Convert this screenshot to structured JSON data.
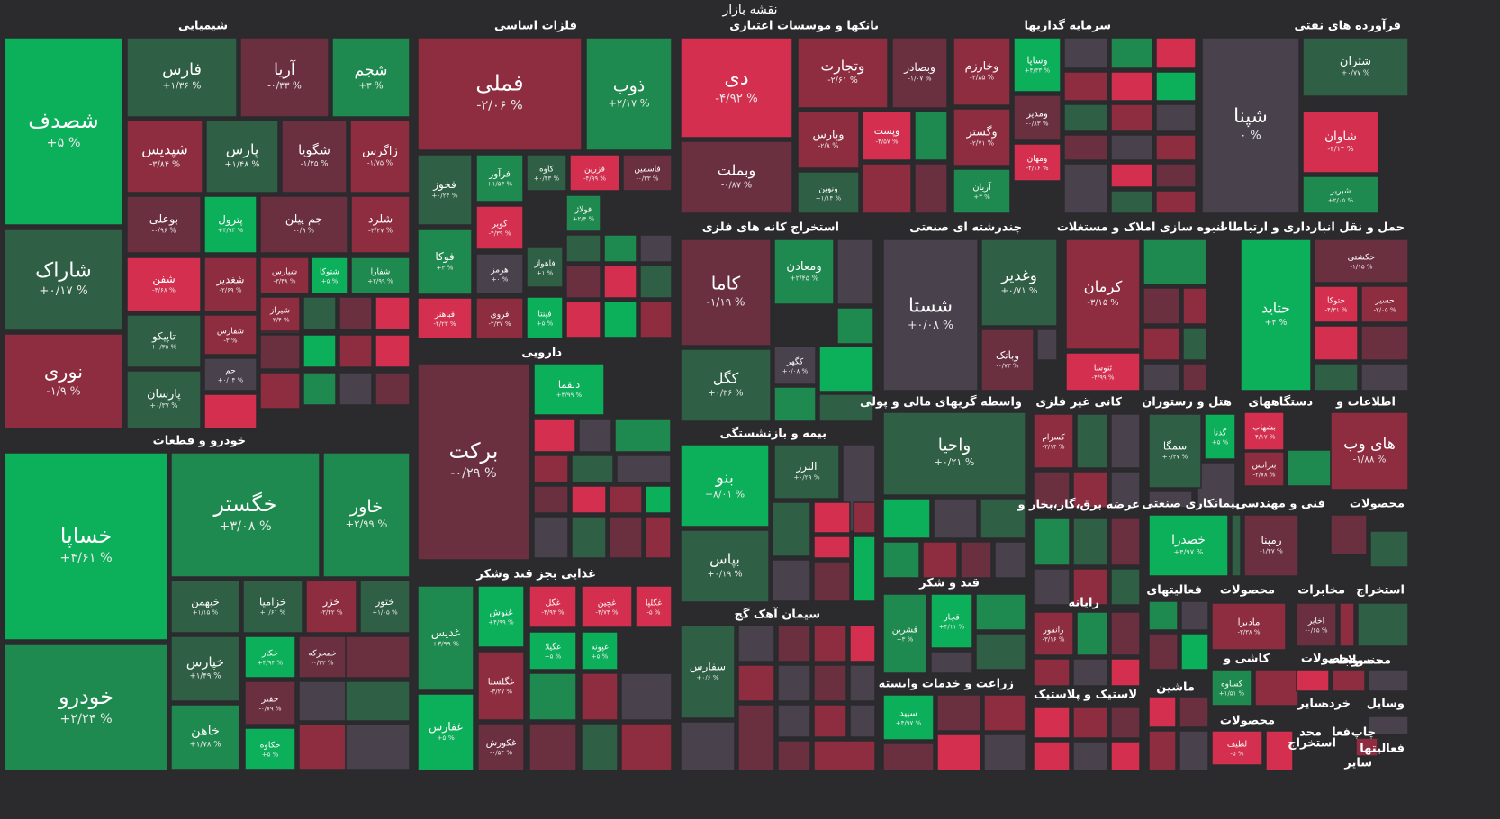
{
  "chart_data": {
    "type": "treemap",
    "title": "نقشه بازار",
    "palette": {
      "up_strong": "#0db05a",
      "up": "#1f8a4f",
      "up_weak": "#2f5f44",
      "flat": "#49424c",
      "down_weak": "#6a3040",
      "down": "#8e2c40",
      "down_strong": "#d42f4e",
      "background": "#2b2b2e"
    },
    "sectors": [
      {
        "name": "شیمیایی",
        "tiles": [
          {
            "s": "شصدف",
            "c": "+۵ %",
            "v": 5
          },
          {
            "s": "فارس",
            "c": "+۱/۳۶ %",
            "v": 1.36
          },
          {
            "s": "آریا",
            "c": "-۰/۳۳ %",
            "v": -0.33
          },
          {
            "s": "شجم",
            "c": "+۳ %",
            "v": 3
          },
          {
            "s": "شپدیس",
            "c": "-۳/۸۴ %",
            "v": -3.84
          },
          {
            "s": "پارس",
            "c": "+۱/۴۸ %",
            "v": 1.48
          },
          {
            "s": "شگویا",
            "c": "-۱/۲۵ %",
            "v": -1.25
          },
          {
            "s": "زاگرس",
            "c": "-۱/۷۵ %",
            "v": -1.75
          },
          {
            "s": "شاراک",
            "c": "+۰/۱۷ %",
            "v": 0.17
          },
          {
            "s": "بوعلی",
            "c": "-۰/۹۶ %",
            "v": -0.96
          },
          {
            "s": "پترول",
            "c": "+۴/۹۳ %",
            "v": 4.93
          },
          {
            "s": "جم پیلن",
            "c": "-۰/۹ %",
            "v": -0.9
          },
          {
            "s": "شلرد",
            "c": "-۳/۲۷ %",
            "v": -3.27
          },
          {
            "s": "نوری",
            "c": "-۱/۹ %",
            "v": -1.9
          },
          {
            "s": "شفن",
            "c": "-۴/۶۸ %",
            "v": -4.68
          },
          {
            "s": "شغدیر",
            "c": "-۲/۶۹ %",
            "v": -2.69
          },
          {
            "s": "شپارس",
            "c": "-۳/۴۸ %",
            "v": -3.48
          },
          {
            "s": "شتوکا",
            "c": "+۵ %",
            "v": 5
          },
          {
            "s": "شفارا",
            "c": "+۲/۹۹ %",
            "v": 2.99
          },
          {
            "s": "تاپیکو",
            "c": "+۰/۳۵ %",
            "v": 0.35
          },
          {
            "s": "شفارس",
            "c": "-۳ %",
            "v": -3
          },
          {
            "s": "شیراز",
            "c": "-۲/۴ %",
            "v": -2.4
          },
          {
            "s": "جم",
            "c": "+۰/۰۴ %",
            "v": 0.04
          },
          {
            "s": "پارسان",
            "c": "+۰/۳۷ %",
            "v": 0.37
          }
        ]
      },
      {
        "name": "خودرو و قطعات",
        "tiles": [
          {
            "s": "خساپا",
            "c": "+۴/۶۱ %",
            "v": 4.61
          },
          {
            "s": "خگستر",
            "c": "+۳/۰۸ %",
            "v": 3.08
          },
          {
            "s": "خاور",
            "c": "+۲/۹۹ %",
            "v": 2.99
          },
          {
            "s": "خبهمن",
            "c": "+۱/۱۵ %",
            "v": 1.15
          },
          {
            "s": "خزامیا",
            "c": "+۰/۶۱ %",
            "v": 0.61
          },
          {
            "s": "خزر",
            "c": "-۳/۴۲ %",
            "v": -3.42
          },
          {
            "s": "ختور",
            "c": "+۱/۰۵ %",
            "v": 1.05
          },
          {
            "s": "خودرو",
            "c": "+۲/۲۴ %",
            "v": 2.24
          },
          {
            "s": "خپارس",
            "c": "+۱/۴۹ %",
            "v": 1.49
          },
          {
            "s": "خکار",
            "c": "+۴/۹۴ %",
            "v": 4.94
          },
          {
            "s": "خمحرکه",
            "c": "-۰/۳۲ %",
            "v": -0.32
          },
          {
            "s": "خفنر",
            "c": "-۰/۷۹ %",
            "v": -0.79
          },
          {
            "s": "خاهن",
            "c": "+۱/۷۸ %",
            "v": 1.78
          },
          {
            "s": "خکاوه",
            "c": "+۵ %",
            "v": 5
          }
        ]
      },
      {
        "name": "فلزات اساسی",
        "tiles": [
          {
            "s": "فملی",
            "c": "-۲/۰۶ %",
            "v": -2.06
          },
          {
            "s": "ذوب",
            "c": "+۲/۱۷ %",
            "v": 2.17
          },
          {
            "s": "فخوز",
            "c": "+۰/۲۴ %",
            "v": 0.24
          },
          {
            "s": "فرآور",
            "c": "+۱/۵۳ %",
            "v": 1.53
          },
          {
            "s": "کاوه",
            "c": "+۰/۴۳ %",
            "v": 0.43
          },
          {
            "s": "فزرین",
            "c": "-۴/۹۹ %",
            "v": -4.99
          },
          {
            "s": "فاسمین",
            "c": "-۰/۳۳ %",
            "v": -0.33
          },
          {
            "s": "کویر",
            "c": "-۴/۳۹ %",
            "v": -4.39
          },
          {
            "s": "فولاژ",
            "c": "+۲/۴ %",
            "v": 2.4
          },
          {
            "s": "فوکا",
            "c": "+۳ %",
            "v": 3
          },
          {
            "s": "هرمز",
            "c": "+۰ %",
            "v": 0
          },
          {
            "s": "فاهواز",
            "c": "+۱ %",
            "v": 1
          },
          {
            "s": "فباهنر",
            "c": "-۴/۲۳ %",
            "v": -4.23
          },
          {
            "s": "فروی",
            "c": "-۲/۳۷ %",
            "v": -2.37
          },
          {
            "s": "فپنتا",
            "c": "+۵ %",
            "v": 5
          }
        ]
      },
      {
        "name": "دارویی",
        "tiles": [
          {
            "s": "برکت",
            "c": "-۰/۲۹ %",
            "v": -0.29
          },
          {
            "s": "دلقما",
            "c": "+۴/۹۹ %",
            "v": 4.99
          }
        ]
      },
      {
        "name": "غذایی بجز قند وشکر",
        "tiles": [
          {
            "s": "غدیس",
            "c": "+۳/۹۹ %",
            "v": 3.99
          },
          {
            "s": "غنوش",
            "c": "+۴/۹۹ %",
            "v": 4.99
          },
          {
            "s": "غگل",
            "c": "-۴/۹۳ %",
            "v": -4.93
          },
          {
            "s": "غچین",
            "c": "-۴/۷۴ %",
            "v": -4.74
          },
          {
            "s": "غگلپا",
            "c": "-۵ %",
            "v": -5
          },
          {
            "s": "غگیلا",
            "c": "+۵ %",
            "v": 5
          },
          {
            "s": "غپونه",
            "c": "+۵ %",
            "v": 5
          },
          {
            "s": "غگلستا",
            "c": "-۳/۲۷ %",
            "v": -3.27
          },
          {
            "s": "غفارس",
            "c": "+۵ %",
            "v": 5
          },
          {
            "s": "غکورش",
            "c": "-۰/۵۴ %",
            "v": -0.54
          }
        ]
      },
      {
        "name": "بانکها و موسسات اعتباری",
        "tiles": [
          {
            "s": "دی",
            "c": "-۴/۹۲ %",
            "v": -4.92
          },
          {
            "s": "وتجارت",
            "c": "-۲/۶۱ %",
            "v": -2.61
          },
          {
            "s": "وبصادر",
            "c": "-۱/۰۷ %",
            "v": -1.07
          },
          {
            "s": "وبملت",
            "c": "-۰/۸۷ %",
            "v": -0.87
          },
          {
            "s": "وپارس",
            "c": "-۲/۸ %",
            "v": -2.8
          },
          {
            "s": "وپست",
            "c": "-۴/۵۷ %",
            "v": -4.57
          },
          {
            "s": "ونوین",
            "c": "+۱/۱۴ %",
            "v": 1.14
          }
        ]
      },
      {
        "name": "سرمایه گذاریها",
        "tiles": [
          {
            "s": "وخارزم",
            "c": "-۲/۸۵ %",
            "v": -2.85
          },
          {
            "s": "وساپا",
            "c": "+۴/۳۳ %",
            "v": 4.33
          },
          {
            "s": "وگستر",
            "c": "-۲/۷۱ %",
            "v": -2.71
          },
          {
            "s": "ومدیر",
            "c": "-۰/۸۳ %",
            "v": -0.83
          },
          {
            "s": "ومهان",
            "c": "-۴/۱۶ %",
            "v": -4.16
          },
          {
            "s": "آریان",
            "c": "+۳ %",
            "v": 3
          }
        ]
      },
      {
        "name": "فرآورده های نفتی",
        "tiles": [
          {
            "s": "شپنا",
            "c": "۰ %",
            "v": 0
          },
          {
            "s": "شتران",
            "c": "+۰/۷۷ %",
            "v": 0.77
          },
          {
            "s": "شاوان",
            "c": "-۴/۱۴ %",
            "v": -4.14
          },
          {
            "s": "شبریز",
            "c": "+۲/۰۵ %",
            "v": 2.05
          }
        ]
      },
      {
        "name": "استخراج کانه های فلزی",
        "tiles": [
          {
            "s": "کاما",
            "c": "-۱/۱۹ %",
            "v": -1.19
          },
          {
            "s": "ومعادن",
            "c": "+۲/۴۵ %",
            "v": 2.45
          },
          {
            "s": "کگل",
            "c": "+۰/۳۶ %",
            "v": 0.36
          },
          {
            "s": "کگهر",
            "c": "+۰/۰۸ %",
            "v": 0.08
          }
        ]
      },
      {
        "name": "چندرشته ای صنعتی",
        "tiles": [
          {
            "s": "شستا",
            "c": "+۰/۰۸ %",
            "v": 0.08
          },
          {
            "s": "وغدیر",
            "c": "+۰/۷۱ %",
            "v": 0.71
          },
          {
            "s": "وبانک",
            "c": "-۰/۷۳ %",
            "v": -0.73
          }
        ]
      },
      {
        "name": "انبوه سازی املاک و مستغلات",
        "tiles": [
          {
            "s": "کرمان",
            "c": "-۳/۱۵ %",
            "v": -3.15
          },
          {
            "s": "ثنوسا",
            "c": "-۴/۹۹ %",
            "v": -4.99
          }
        ]
      },
      {
        "name": "حمل و نقل انبارداری و ارتباطات",
        "tiles": [
          {
            "s": "حکشتی",
            "c": "-۱/۱۵ %",
            "v": -1.15
          },
          {
            "s": "حتاید",
            "c": "+۴ %",
            "v": 4
          },
          {
            "s": "حتوکا",
            "c": "-۴/۳۱ %",
            "v": -4.31
          },
          {
            "s": "حسیر",
            "c": "-۲/۰۵ %",
            "v": -2.05
          }
        ]
      },
      {
        "name": "بیمه و بازنشستگی",
        "tiles": [
          {
            "s": "بنو",
            "c": "+۸/۰۱ %",
            "v": 8.01
          },
          {
            "s": "البرز",
            "c": "+۰/۲۹ %",
            "v": 0.29
          },
          {
            "s": "بپاس",
            "c": "+۰/۱۹ %",
            "v": 0.19
          }
        ]
      },
      {
        "name": "سیمان آهک گچ",
        "tiles": [
          {
            "s": "سفارس",
            "c": "+۰/۶ %",
            "v": 0.6
          }
        ]
      },
      {
        "name": "واسطه گریهای مالی و پولی",
        "tiles": [
          {
            "s": "واحیا",
            "c": "+۰/۲۱ %",
            "v": 0.21
          }
        ]
      },
      {
        "name": "قند و شکر",
        "tiles": [
          {
            "s": "قشرین",
            "c": "+۳ %",
            "v": 3
          },
          {
            "s": "قچار",
            "c": "+۴/۱۱ %",
            "v": 4.11
          }
        ]
      },
      {
        "name": "زراعت و خدمات وابسته",
        "tiles": [
          {
            "s": "سپید",
            "c": "+۴/۹۷ %",
            "v": 4.97
          }
        ]
      },
      {
        "name": "کانی غیر فلزی",
        "tiles": [
          {
            "s": "کسرام",
            "c": "-۳/۱۴ %",
            "v": -3.14
          }
        ]
      },
      {
        "name": "رایانه",
        "tiles": [
          {
            "s": "رانفور",
            "c": "-۳/۱۶ %",
            "v": -3.16
          }
        ]
      },
      {
        "name": "هتل و رستوران",
        "tiles": [
          {
            "s": "سمگا",
            "c": "+۰/۴۷ %",
            "v": 0.47
          },
          {
            "s": "گدنا",
            "c": "+۵ %",
            "v": 5
          }
        ]
      },
      {
        "name": "دستگاههای",
        "tiles": [
          {
            "s": "بشهاب",
            "c": "-۴/۱۷ %",
            "v": -4.17
          },
          {
            "s": "بترانس",
            "c": "-۳/۷۸ %",
            "v": -3.78
          }
        ]
      },
      {
        "name": "اطلاعات و",
        "tiles": [
          {
            "s": "های وب",
            "c": "-۱/۸۸ %",
            "v": -1.88
          }
        ]
      },
      {
        "name": "پیمانکاری صنعتی",
        "tiles": [
          {
            "s": "خصدرا",
            "c": "+۴/۹۷ %",
            "v": 4.97
          }
        ]
      },
      {
        "name": "فنی و مهندسی",
        "tiles": [
          {
            "s": "رمپنا",
            "c": "-۱/۴۷ %",
            "v": -1.47
          }
        ]
      },
      {
        "name": "محصولات",
        "tiles": [
          {
            "s": "ماديرا",
            "c": "-۳/۳۸ %",
            "v": -3.38
          }
        ]
      },
      {
        "name": "مخابرات",
        "tiles": [
          {
            "s": "اخابر",
            "c": "-۰/۶۵ %",
            "v": -0.65
          }
        ]
      },
      {
        "name": "کاشی و",
        "tiles": [
          {
            "s": "کساوه",
            "c": "+۱/۵۱ %",
            "v": 1.51
          }
        ]
      },
      {
        "name": "محصولات",
        "tiles": [
          {
            "s": "لطیف",
            "c": "-۵ %",
            "v": -5
          }
        ]
      }
    ],
    "extra_labels": [
      "عرضه برق،گاز،بخار و",
      "لاستیک و پلاستیک",
      "ماشین",
      "فعالیتهای",
      "استخراج",
      "منسوجات",
      "وسایل",
      "خرده",
      "سایر",
      "فعالیتها",
      "فعا",
      "چاپ",
      "محد",
      "استخراج",
      "سایر",
      "محصولات",
      "محصولات",
      "محصولات"
    ]
  }
}
